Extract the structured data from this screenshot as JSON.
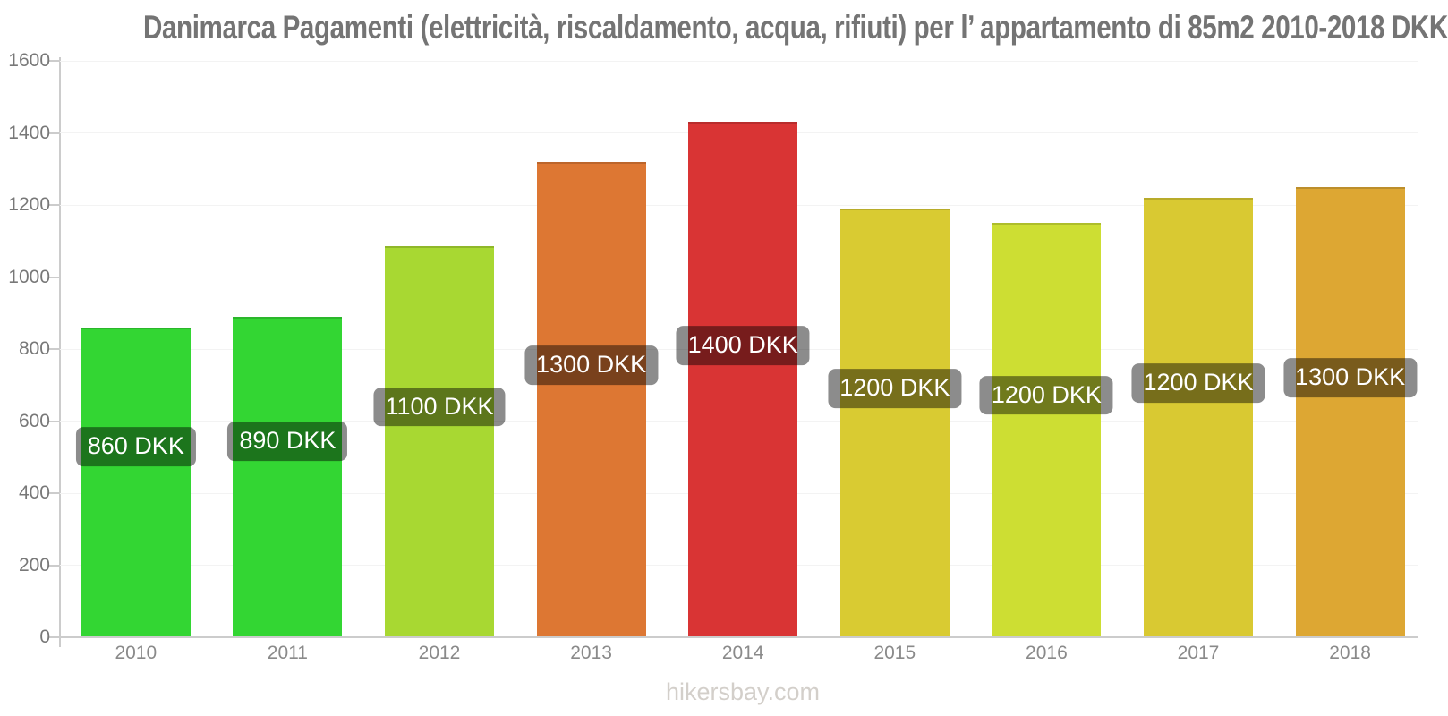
{
  "title": "Danimarca Pagamenti (elettricità, riscaldamento, acqua, rifiuti) per l’ appartamento di 85m2 2010-2018 DKK",
  "footer": "hikersbay.com",
  "chart_data": {
    "type": "bar",
    "title": "Danimarca Pagamenti (elettricità, riscaldamento, acqua, rifiuti) per l’ appartamento di 85m2 2010-2018 DKK",
    "xlabel": "",
    "ylabel": "",
    "categories": [
      "2010",
      "2011",
      "2012",
      "2013",
      "2014",
      "2015",
      "2016",
      "2017",
      "2018"
    ],
    "values": [
      860,
      890,
      1085,
      1320,
      1430,
      1190,
      1150,
      1220,
      1250
    ],
    "bar_labels": [
      "860 DKK",
      "890 DKK",
      "1100 DKK",
      "1300 DKK",
      "1400 DKK",
      "1200 DKK",
      "1200 DKK",
      "1200 DKK",
      "1300 DKK"
    ],
    "bar_colors": [
      "#33d633",
      "#33d633",
      "#a8d832",
      "#dd7733",
      "#d93434",
      "#d9cb32",
      "#cdde33",
      "#d9c932",
      "#dda733"
    ],
    "ylim": [
      0,
      1600
    ],
    "yticks": [
      0,
      200,
      400,
      600,
      800,
      1000,
      1200,
      1400,
      1600
    ],
    "grid": "horizontal-faint",
    "legend": "none",
    "currency": "DKK"
  },
  "palette": {
    "title_text": "#747474",
    "axis_line": "#cccccc",
    "ytick_text": "#787878",
    "xtick_text": "#8a8a8a",
    "gridline": "#f3f3f3",
    "value_label_bg": "rgba(0,0,0,0.45)",
    "value_label_text": "#ffffff",
    "footer_text": "#d3cfca",
    "background": "#ffffff"
  }
}
